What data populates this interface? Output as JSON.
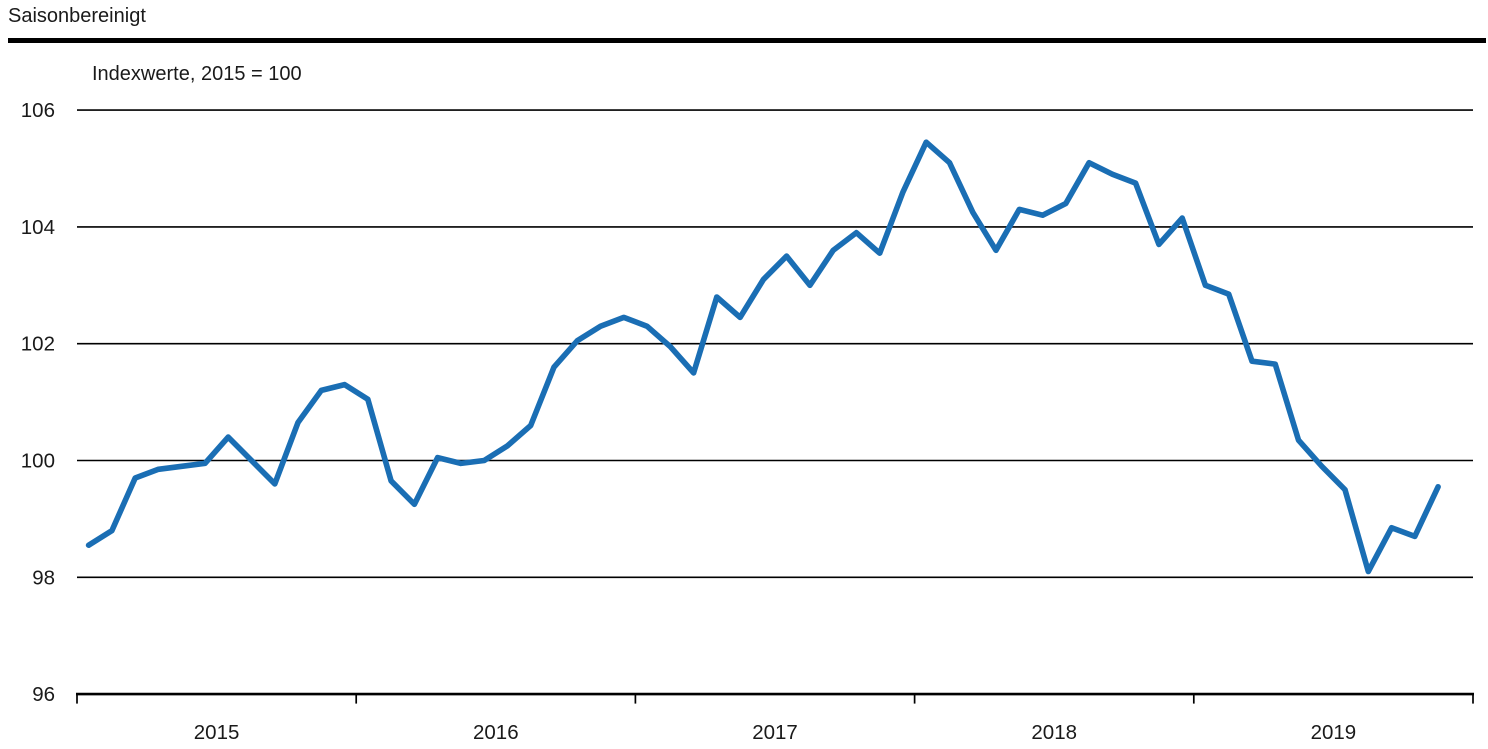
{
  "header": {
    "title": "Saisonbereinigt",
    "subtitle": "Indexwerte, 2015 = 100"
  },
  "colors": {
    "line": "#1a6eb4",
    "axis": "#000000",
    "grid": "#000000",
    "text": "#1a1a1a"
  },
  "chart_data": {
    "type": "line",
    "title": "Saisonbereinigt",
    "subtitle": "Indexwerte, 2015 = 100",
    "frequency": "monthly",
    "x_start": "2015-01",
    "x_end": "2019-11",
    "x_tick_labels": [
      "2015",
      "2016",
      "2017",
      "2018",
      "2019"
    ],
    "y_ticks": [
      106,
      104,
      102,
      100,
      98,
      96
    ],
    "ylim": [
      96,
      106.8
    ],
    "grid": "horizontal",
    "legend": "none",
    "series": [
      {
        "name": "Indexwerte, saisonbereinigt",
        "values": [
          98.55,
          98.8,
          99.7,
          99.85,
          99.9,
          99.95,
          100.4,
          100.0,
          99.6,
          100.65,
          101.2,
          101.3,
          101.05,
          99.65,
          99.25,
          100.05,
          99.95,
          100.0,
          100.25,
          100.6,
          101.6,
          102.05,
          102.3,
          102.45,
          102.3,
          101.95,
          101.5,
          102.8,
          102.45,
          103.1,
          103.5,
          103.0,
          103.6,
          103.9,
          103.55,
          104.6,
          105.45,
          105.1,
          104.25,
          103.6,
          104.3,
          104.2,
          104.4,
          105.1,
          104.9,
          104.75,
          103.7,
          104.15,
          103.0,
          102.85,
          101.7,
          101.65,
          100.35,
          99.9,
          99.5,
          98.1,
          98.85,
          98.7,
          99.55
        ]
      }
    ]
  }
}
